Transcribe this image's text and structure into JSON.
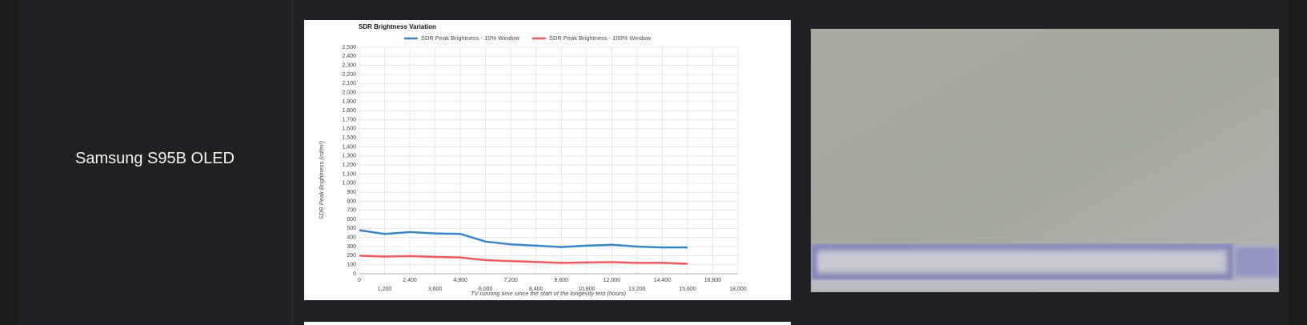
{
  "row": {
    "label": "Samsung S95B OLED"
  },
  "chart_data": {
    "type": "line",
    "title": "SDR Brightness Variation",
    "x_label": "TV running time since the start of the longevity test (hours)",
    "y_label": "SDR Peak Brightness (cd/m²)",
    "x": [
      0,
      1200,
      2400,
      3600,
      4800,
      6000,
      7200,
      8400,
      9600,
      10800,
      12000,
      13200,
      14400,
      15600
    ],
    "series": [
      {
        "name": "SDR Peak Brightness - 10% Window",
        "color": "#3b86c4",
        "values": [
          480,
          440,
          460,
          445,
          440,
          355,
          325,
          310,
          295,
          310,
          320,
          300,
          290,
          290
        ]
      },
      {
        "name": "SDR Peak Brightness - 100% Window",
        "color": "#ef5a5a",
        "values": [
          200,
          190,
          195,
          185,
          180,
          150,
          140,
          130,
          120,
          125,
          128,
          120,
          120,
          110
        ]
      }
    ],
    "xlim": [
      0,
      18000
    ],
    "xticks": [
      0,
      {
        "value": 1200,
        "label": "1,200"
      },
      {
        "value": 2400,
        "label": "2,400"
      },
      {
        "value": 3600,
        "label": "3,600"
      },
      {
        "value": 4800,
        "label": "4,800"
      },
      {
        "value": 6000,
        "label": "6,000"
      },
      {
        "value": 7200,
        "label": "7,200"
      },
      {
        "value": 8400,
        "label": "8,400"
      },
      {
        "value": 9600,
        "label": "9,600"
      },
      {
        "value": 10800,
        "label": "10,800"
      },
      {
        "value": 12000,
        "label": "12,000"
      },
      {
        "value": 13200,
        "label": "13,200"
      },
      {
        "value": 14400,
        "label": "14,400"
      },
      {
        "value": 15600,
        "label": "15,600"
      },
      {
        "value": 16800,
        "label": "16,800"
      },
      {
        "value": 18000,
        "label": "18,000"
      }
    ],
    "ylim": [
      0,
      2500
    ],
    "yticks": [
      0,
      100,
      200,
      300,
      400,
      500,
      600,
      700,
      800,
      900,
      {
        "value": 1000,
        "label": "1,000"
      },
      {
        "value": 1100,
        "label": "1,100"
      },
      {
        "value": 1200,
        "label": "1,200"
      },
      {
        "value": 1300,
        "label": "1,300"
      },
      {
        "value": 1400,
        "label": "1,400"
      },
      {
        "value": 1500,
        "label": "1,500"
      },
      {
        "value": 1600,
        "label": "1,600"
      },
      {
        "value": 1700,
        "label": "1,700"
      },
      {
        "value": 1800,
        "label": "1,800"
      },
      {
        "value": 1900,
        "label": "1,900"
      },
      {
        "value": 2000,
        "label": "2,000"
      },
      {
        "value": 2100,
        "label": "2,100"
      },
      {
        "value": 2200,
        "label": "2,200"
      },
      {
        "value": 2300,
        "label": "2,300"
      },
      {
        "value": 2400,
        "label": "2,400"
      },
      {
        "value": 2500,
        "label": "2,500"
      }
    ],
    "grid": true,
    "legend": "top"
  }
}
